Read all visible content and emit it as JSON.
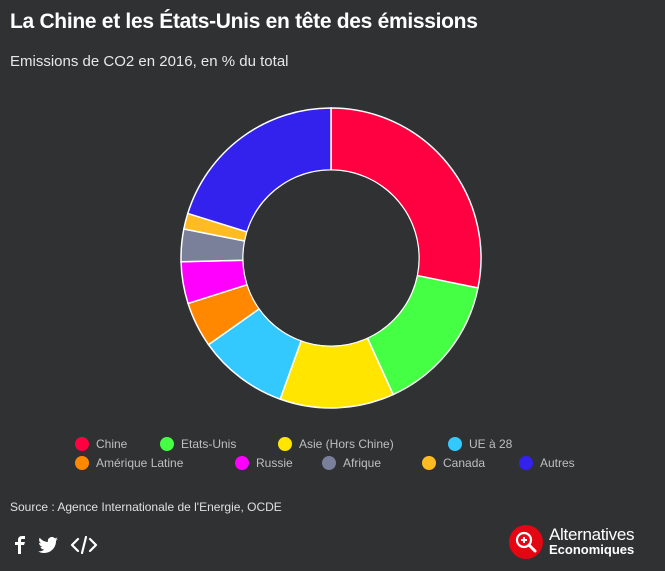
{
  "title": "La Chine et les États-Unis en tête des émissions",
  "subtitle": "Emissions de CO2 en 2016, en % du total",
  "source": "Source : Agence Internationale de l'Energie, OCDE",
  "logo": {
    "line1": "Alternatives",
    "line2": "Economiques"
  },
  "share_icons": [
    "facebook-icon",
    "twitter-icon",
    "embed-code-icon"
  ],
  "chart_data": {
    "type": "pie",
    "subtype": "donut",
    "categories": [
      "Chine",
      "Etats-Unis",
      "Asie (Hors Chine)",
      "UE à 28",
      "Amérique Latine",
      "Russie",
      "Afrique",
      "Canada",
      "Autres"
    ],
    "values": [
      28.2,
      15.0,
      12.3,
      9.7,
      4.9,
      4.5,
      3.5,
      1.7,
      20.2
    ],
    "colors": [
      "#ff0040",
      "#44ff44",
      "#ffe500",
      "#33c9ff",
      "#ff8800",
      "#ff00ff",
      "#7a8099",
      "#ffbb22",
      "#3322ee"
    ],
    "unit": "%",
    "legend_position": "bottom"
  }
}
